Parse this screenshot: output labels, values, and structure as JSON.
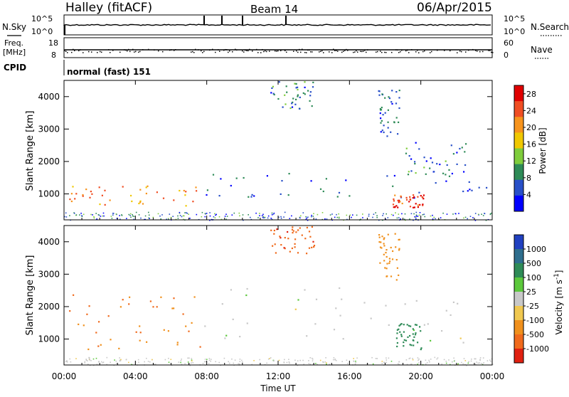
{
  "header": {
    "station": "Halley (fitACF)",
    "beam": "Beam 14",
    "date": "06/Apr/2015"
  },
  "top_panels": {
    "nsky_label": "N.Sky",
    "nsearch_label": "N.Search",
    "noise_ticks": [
      "10^5",
      "10^0"
    ],
    "freq_label_line1": "Freq.",
    "freq_label_line2": "[MHz]",
    "freq_ticks": [
      "18",
      "8"
    ],
    "nave_label": "Nave",
    "nave_ticks": [
      "60",
      "0"
    ],
    "cpid_label": "CPID",
    "cpid_value": "normal (fast) 151"
  },
  "chart_data": [
    {
      "type": "heatmap",
      "title": "",
      "xlabel": "Time UT",
      "ylabel": "Slant Range [km]",
      "x_ticks": [
        "00:00",
        "04:00",
        "08:00",
        "12:00",
        "16:00",
        "20:00",
        "00:00"
      ],
      "x_range_hours": [
        0,
        24
      ],
      "y_ticks": [
        1000,
        2000,
        3000,
        4000
      ],
      "ylim": [
        200,
        4500
      ],
      "colorbar": {
        "label": "Power [dB]",
        "ticks": [
          28,
          24,
          20,
          16,
          12,
          8,
          4
        ],
        "range": [
          0,
          30
        ],
        "colors": [
          "#0000ff",
          "#2850c8",
          "#2e8b57",
          "#7fcd3c",
          "#f0c800",
          "#f7941d",
          "#f04e23",
          "#e00000"
        ]
      },
      "features": [
        {
          "t": [
            0.2,
            7.6
          ],
          "r": [
            650,
            1300
          ],
          "level": 22
        },
        {
          "t": [
            7.6,
            24.0
          ],
          "r": [
            900,
            1700
          ],
          "level": 6
        },
        {
          "t": [
            11.5,
            14.0
          ],
          "r": [
            3600,
            4500
          ],
          "level": 8
        },
        {
          "t": [
            17.6,
            18.8
          ],
          "r": [
            2800,
            4300
          ],
          "level": 6
        },
        {
          "t": [
            18.4,
            20.2
          ],
          "r": [
            600,
            1000
          ],
          "level": 27
        },
        {
          "t": [
            19.0,
            22.5
          ],
          "r": [
            1500,
            2600
          ],
          "level": 7
        }
      ]
    },
    {
      "type": "heatmap",
      "title": "",
      "xlabel": "Time UT",
      "ylabel": "Slant Range [km]",
      "x_ticks": [
        "00:00",
        "04:00",
        "08:00",
        "12:00",
        "16:00",
        "20:00",
        "00:00"
      ],
      "x_range_hours": [
        0,
        24
      ],
      "y_ticks": [
        1000,
        2000,
        3000,
        4000
      ],
      "ylim": [
        200,
        4500
      ],
      "colorbar": {
        "label": "Velocity [m s^-1]",
        "ticks": [
          1000,
          500,
          100,
          25,
          -25,
          -100,
          -500,
          -1000
        ],
        "colors": [
          "#2040c0",
          "#2e6e8e",
          "#2e8b57",
          "#5cc83c",
          "#c8c8c8",
          "#f0c850",
          "#f0901c",
          "#f06a1c",
          "#e02010"
        ]
      },
      "features": [
        {
          "t": [
            0.2,
            7.6
          ],
          "r": [
            650,
            2400
          ],
          "velocity": -300
        },
        {
          "t": [
            7.8,
            22.5
          ],
          "r": [
            900,
            2600
          ],
          "velocity": 0
        },
        {
          "t": [
            11.5,
            14.0
          ],
          "r": [
            3600,
            4500
          ],
          "velocity": -600
        },
        {
          "t": [
            17.6,
            18.8
          ],
          "r": [
            2800,
            4300
          ],
          "velocity": -200
        },
        {
          "t": [
            18.6,
            20.0
          ],
          "r": [
            700,
            1500
          ],
          "velocity": 150
        }
      ]
    }
  ]
}
